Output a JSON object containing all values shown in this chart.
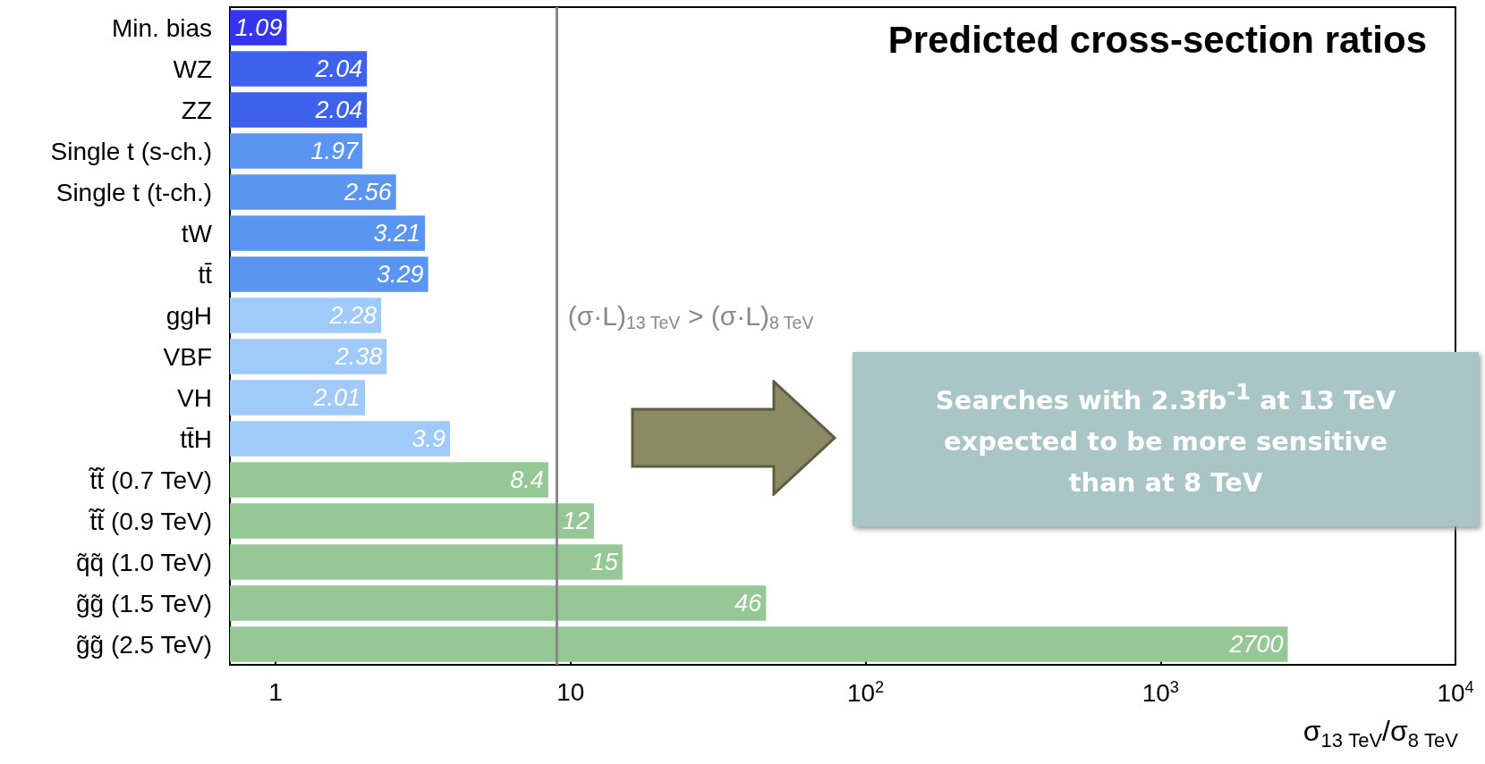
{
  "chart_data": {
    "type": "bar",
    "orientation": "horizontal",
    "title": "Predicted cross-section ratios",
    "xlabel": "σ$_{13 TeV}$/σ$_{8 TeV}$",
    "categories": [
      "Min. bias",
      "WZ",
      "ZZ",
      "Single t (s-ch.)",
      "Single t (t-ch.)",
      "tW",
      "tt̄",
      "ggH",
      "VBF",
      "VH",
      "tt̄H",
      "t̃t̃ (0.7 TeV)",
      "t̃t̃ (0.9 TeV)",
      "q̃q̃ (1.0 TeV)",
      "g̃g̃ (1.5 TeV)",
      "g̃g̃ (2.5 TeV)"
    ],
    "values": [
      1.09,
      2.04,
      2.04,
      1.97,
      2.56,
      3.21,
      3.29,
      2.28,
      2.38,
      2.01,
      3.9,
      8.4,
      12,
      15,
      46,
      2700
    ],
    "colors": [
      "#3535f0",
      "#3f62ee",
      "#3f62ee",
      "#5a95f2",
      "#5a95f2",
      "#5a95f2",
      "#5a95f2",
      "#9fcafa",
      "#9fcafa",
      "#9fcafa",
      "#9fcafa",
      "#96c896",
      "#96c896",
      "#96c896",
      "#96c896",
      "#96c896"
    ],
    "data_labels": true,
    "log": "x",
    "grid": false,
    "xlim": [
      0.7,
      10000
    ],
    "xticks": [
      1,
      10,
      {
        "value": 100,
        "label": "10$^{2}$"
      },
      {
        "value": 1000,
        "label": "10$^{3}$"
      },
      {
        "value": 10000,
        "label": "10$^{4}$"
      }
    ],
    "ref_lines": [
      {
        "axis": "x",
        "value": 9,
        "label": "(σ·L)$_{13 TeV}$ > (σ·L)$_{8 TeV}$",
        "color": "#888888"
      }
    ],
    "annotations": [
      "Searches with 2.3fb$^{-1}$ at 13 TeV expected to be more sensitive than at 8 TeV"
    ]
  }
}
